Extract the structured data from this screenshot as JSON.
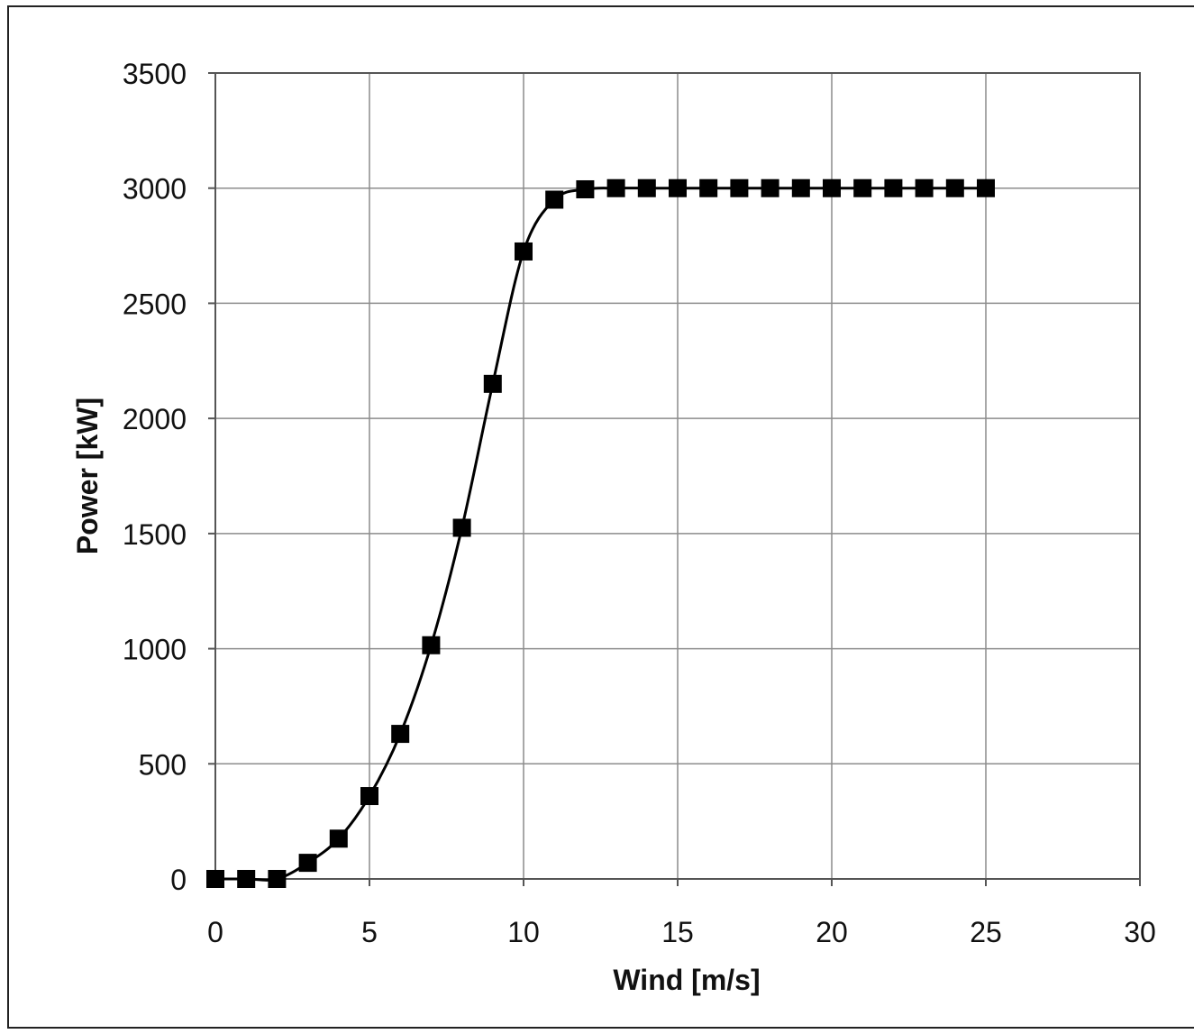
{
  "chart_data": {
    "type": "line",
    "title": "",
    "xlabel": "Wind [m/s]",
    "ylabel": "Power [kW]",
    "xlim": [
      0,
      30
    ],
    "ylim": [
      0,
      3500
    ],
    "xticks": [
      0,
      5,
      10,
      15,
      20,
      25,
      30
    ],
    "yticks": [
      0,
      500,
      1000,
      1500,
      2000,
      2500,
      3000,
      3500
    ],
    "grid": true,
    "marker": "square",
    "colors": {
      "line": "#000000",
      "grid": "#8c8c8c",
      "axis": "#555555"
    },
    "series": [
      {
        "x": [
          0,
          1,
          2,
          3,
          4,
          5,
          6,
          7,
          8,
          9,
          10,
          11,
          12,
          13,
          14,
          15,
          16,
          17,
          18,
          19,
          20,
          21,
          22,
          23,
          24,
          25
        ],
        "y": [
          0,
          0,
          0,
          70,
          175,
          360,
          630,
          1015,
          1525,
          2150,
          2725,
          2950,
          2995,
          3000,
          3000,
          3000,
          3000,
          3000,
          3000,
          3000,
          3000,
          3000,
          3000,
          3000,
          3000,
          3000
        ]
      }
    ]
  }
}
